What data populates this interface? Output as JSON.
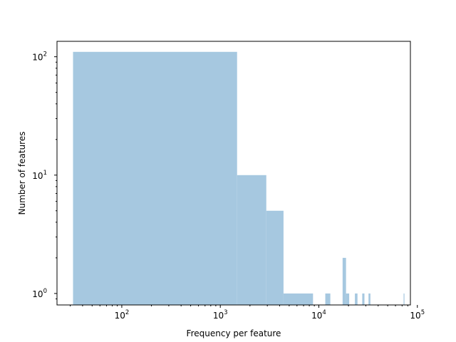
{
  "chart_data": {
    "type": "bar",
    "xscale": "log",
    "yscale": "log",
    "xlabel": "Frequency per feature",
    "ylabel": "Number of features",
    "xlim": [
      22,
      85000
    ],
    "ylim": [
      0.8,
      135
    ],
    "xticks": [
      {
        "value": 100,
        "base": "10",
        "exp": "2"
      },
      {
        "value": 1000,
        "base": "10",
        "exp": "3"
      },
      {
        "value": 10000,
        "base": "10",
        "exp": "4"
      },
      {
        "value": 100000,
        "base": "10",
        "exp": "5"
      }
    ],
    "yticks": [
      {
        "value": 1,
        "base": "10",
        "exp": "0"
      },
      {
        "value": 10,
        "base": "10",
        "exp": "1"
      },
      {
        "value": 100,
        "base": "10",
        "exp": "2"
      }
    ],
    "bars": [
      {
        "x0": 32,
        "x1": 1480,
        "value": 110
      },
      {
        "x0": 1480,
        "x1": 2930,
        "value": 10
      },
      {
        "x0": 2930,
        "x1": 4380,
        "value": 5
      },
      {
        "x0": 4380,
        "x1": 8730,
        "value": 1
      },
      {
        "x0": 11630,
        "x1": 13080,
        "value": 1
      },
      {
        "x0": 17430,
        "x1": 18880,
        "value": 2
      },
      {
        "x0": 18880,
        "x1": 20330,
        "value": 1
      },
      {
        "x0": 23230,
        "x1": 24680,
        "value": 1
      },
      {
        "x0": 27580,
        "x1": 29030,
        "value": 1
      },
      {
        "x0": 31930,
        "x1": 33380,
        "value": 1
      },
      {
        "x0": 72500,
        "x1": 73950,
        "value": 1
      }
    ],
    "bar_color": "#a6c8e0",
    "grid": false,
    "legend": "none"
  }
}
